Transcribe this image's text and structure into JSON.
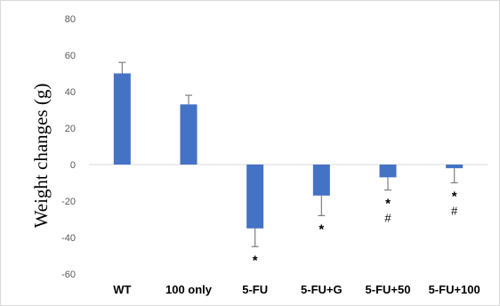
{
  "chart_data": {
    "type": "bar",
    "title": "",
    "xlabel": "",
    "ylabel": "Weight changes (g)",
    "categories": [
      "WT",
      "100 only",
      "5-FU",
      "5-FU+G",
      "5-FU+50",
      "5-FU+100"
    ],
    "values": [
      50,
      33,
      -35,
      -17,
      -7,
      -2
    ],
    "error": [
      6,
      5,
      10,
      11,
      7,
      8
    ],
    "ylim": [
      -60,
      80
    ],
    "yticks": [
      "80",
      "60",
      "40",
      "20",
      "0",
      "-20",
      "-40",
      "-60"
    ],
    "annotations": [
      {
        "category": "5-FU",
        "marks": [
          "*"
        ]
      },
      {
        "category": "5-FU+G",
        "marks": [
          "*"
        ]
      },
      {
        "category": "5-FU+50",
        "marks": [
          "*",
          "#"
        ]
      },
      {
        "category": "5-FU+100",
        "marks": [
          "*",
          "#"
        ]
      }
    ],
    "bar_color": "#4472C4",
    "error_color": "#7f7f7f",
    "grid": false,
    "legend": "none"
  }
}
